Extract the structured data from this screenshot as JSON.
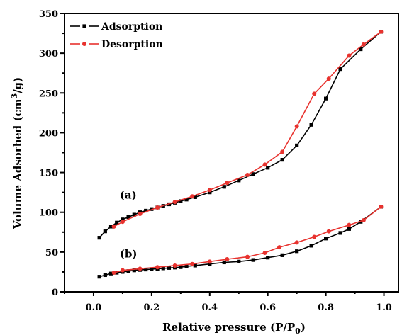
{
  "chart_data": {
    "type": "line",
    "xlabel_main": "Relative pressure (P/P",
    "xlabel_sub": "0",
    "xlabel_end": ")",
    "ylabel_main": "Volume Adsorbed (cm",
    "ylabel_sup": "3",
    "ylabel_end": "/g)",
    "xlim": [
      -0.1,
      1.05
    ],
    "ylim": [
      0,
      350
    ],
    "xticks": [
      0.0,
      0.2,
      0.4,
      0.6,
      0.8,
      1.0
    ],
    "xtick_labels": [
      "0.0",
      "0.2",
      "0.4",
      "0.6",
      "0.8",
      "1.0"
    ],
    "yticks": [
      0,
      50,
      100,
      150,
      200,
      250,
      300,
      350
    ],
    "ytick_labels": [
      "0",
      "50",
      "100",
      "150",
      "200",
      "250",
      "300",
      "350"
    ],
    "legend_position": "top-left",
    "annotations": [
      {
        "text": "(a)",
        "x": 0.09,
        "y": 117
      },
      {
        "text": "(b)",
        "x": 0.09,
        "y": 43
      }
    ],
    "series": [
      {
        "name": "Adsorption",
        "color": "#000000",
        "marker": "square",
        "x": [
          0.02,
          0.04,
          0.06,
          0.08,
          0.1,
          0.12,
          0.14,
          0.16,
          0.18,
          0.2,
          0.22,
          0.24,
          0.26,
          0.28,
          0.3,
          0.32,
          0.35,
          0.4,
          0.45,
          0.5,
          0.55,
          0.6,
          0.65,
          0.7,
          0.75,
          0.8,
          0.85,
          0.92,
          0.99
        ],
        "values": [
          68,
          76,
          82,
          87,
          91,
          94,
          97,
          100,
          102,
          104,
          106,
          108,
          110,
          112,
          114,
          116,
          119,
          125,
          132,
          140,
          148,
          156,
          166,
          184,
          210,
          243,
          280,
          305,
          327
        ],
        "group": "a"
      },
      {
        "name": "Desorption",
        "color": "#e8322e",
        "marker": "circle",
        "x": [
          0.99,
          0.93,
          0.88,
          0.81,
          0.76,
          0.7,
          0.65,
          0.59,
          0.53,
          0.46,
          0.4,
          0.34,
          0.28,
          0.22,
          0.16,
          0.1,
          0.07
        ],
        "values": [
          327,
          311,
          297,
          268,
          249,
          208,
          176,
          160,
          147,
          137,
          128,
          120,
          113,
          106,
          98,
          88,
          82
        ],
        "group": "a"
      },
      {
        "name": "Adsorption",
        "color": "#000000",
        "marker": "square",
        "x": [
          0.02,
          0.04,
          0.06,
          0.08,
          0.1,
          0.12,
          0.14,
          0.16,
          0.18,
          0.2,
          0.22,
          0.24,
          0.26,
          0.28,
          0.3,
          0.32,
          0.35,
          0.4,
          0.45,
          0.5,
          0.55,
          0.6,
          0.65,
          0.7,
          0.75,
          0.8,
          0.85,
          0.88,
          0.92,
          0.99
        ],
        "values": [
          19,
          21,
          23,
          24,
          25,
          26,
          27,
          27.5,
          28,
          28.5,
          29,
          29.5,
          30,
          30.5,
          31,
          32,
          33,
          35,
          37,
          38,
          40,
          43,
          46,
          51,
          58,
          67,
          74,
          79,
          88,
          107
        ],
        "group": "b"
      },
      {
        "name": "Desorption",
        "color": "#e8322e",
        "marker": "circle",
        "x": [
          0.99,
          0.93,
          0.88,
          0.81,
          0.76,
          0.7,
          0.64,
          0.59,
          0.53,
          0.46,
          0.4,
          0.34,
          0.28,
          0.22,
          0.16,
          0.1,
          0.07
        ],
        "values": [
          107,
          90,
          84,
          76,
          69,
          62,
          56,
          49,
          44,
          41,
          38,
          35,
          33,
          31,
          29,
          27,
          24
        ],
        "group": "b"
      }
    ],
    "legend": [
      {
        "name": "Adsorption",
        "color": "#000000",
        "marker": "square"
      },
      {
        "name": "Desorption",
        "color": "#e8322e",
        "marker": "circle"
      }
    ]
  }
}
